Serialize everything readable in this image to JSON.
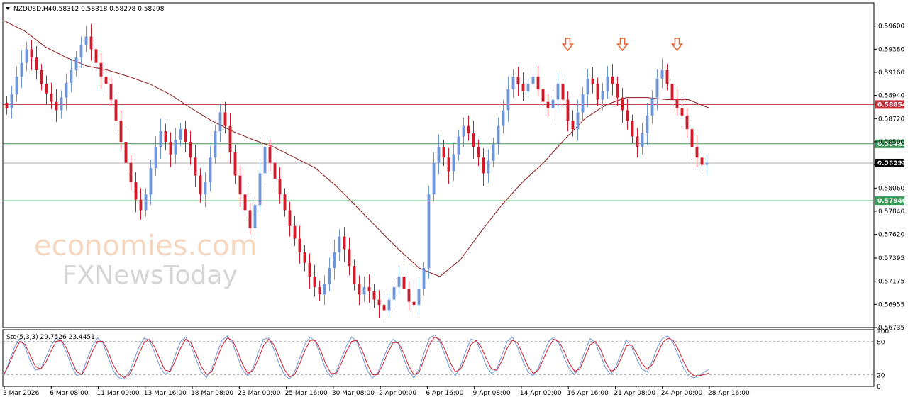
{
  "window": {
    "symbol_tf": "NZDUSD,H4",
    "ohlc": "0.58312 0.58318 0.58278 0.58298"
  },
  "watermark": {
    "line1": "economies.com",
    "line2": "FXNewsToday"
  },
  "colors": {
    "bull": "#6f96d8",
    "bear": "#d11a2a",
    "ma": "#8b1a1a",
    "redline": "#c0303a",
    "greenline": "#3a9a5a",
    "arrow": "#e8622a",
    "sto_main": "#6f96d8",
    "sto_signal": "#d11a2a"
  },
  "chart_data": [
    {
      "type": "candlestick",
      "title": "NZDUSD,H4",
      "ylim": [
        0.56735,
        0.5982
      ],
      "y_ticks": [
        "0.59600",
        "0.59380",
        "0.59160",
        "0.58940",
        "0.58720",
        "0.58500",
        "0.58280",
        "0.58060",
        "0.57840",
        "0.57620",
        "0.57395",
        "0.57175",
        "0.56955",
        "0.56735"
      ],
      "x_ticks": [
        "3 Mar 2026",
        "6 Mar 08:00",
        "11 Mar 00:00",
        "13 Mar 16:00",
        "18 Mar 08:00",
        "23 Mar 00:00",
        "25 Mar 16:00",
        "30 Mar 08:00",
        "2 Apr 00:00",
        "6 Apr 16:00",
        "9 Apr 08:00",
        "14 Apr 00:00",
        "16 Apr 16:00",
        "21 Apr 08:00",
        "24 Apr 00:00",
        "28 Apr 16:00"
      ],
      "closes": [
        0.5882,
        0.5895,
        0.5912,
        0.5925,
        0.5938,
        0.593,
        0.5918,
        0.5905,
        0.5896,
        0.5888,
        0.588,
        0.5892,
        0.5906,
        0.5918,
        0.593,
        0.5942,
        0.595,
        0.5938,
        0.5925,
        0.5912,
        0.5905,
        0.589,
        0.587,
        0.585,
        0.583,
        0.5812,
        0.5795,
        0.5785,
        0.58,
        0.5825,
        0.5845,
        0.586,
        0.585,
        0.5838,
        0.5852,
        0.5862,
        0.585,
        0.5835,
        0.5818,
        0.58,
        0.5812,
        0.5835,
        0.586,
        0.5878,
        0.5865,
        0.584,
        0.5818,
        0.58,
        0.5785,
        0.5768,
        0.579,
        0.582,
        0.5845,
        0.583,
        0.5815,
        0.58,
        0.5785,
        0.577,
        0.5758,
        0.5745,
        0.5735,
        0.5722,
        0.5712,
        0.5705,
        0.5715,
        0.573,
        0.5745,
        0.576,
        0.5748,
        0.5732,
        0.5715,
        0.5705,
        0.5712,
        0.5708,
        0.57,
        0.5695,
        0.569,
        0.57,
        0.5712,
        0.5722,
        0.571,
        0.5698,
        0.5695,
        0.571,
        0.573,
        0.58,
        0.583,
        0.5845,
        0.5835,
        0.5822,
        0.5838,
        0.5855,
        0.5865,
        0.5858,
        0.5845,
        0.5835,
        0.582,
        0.5832,
        0.5848,
        0.5865,
        0.588,
        0.59,
        0.5912,
        0.5905,
        0.5898,
        0.5905,
        0.5912,
        0.59,
        0.5888,
        0.5882,
        0.589,
        0.5905,
        0.589,
        0.587,
        0.5862,
        0.5878,
        0.5895,
        0.591,
        0.5905,
        0.589,
        0.5898,
        0.5912,
        0.5905,
        0.5892,
        0.588,
        0.587,
        0.5855,
        0.5845,
        0.5858,
        0.5875,
        0.5892,
        0.591,
        0.5918,
        0.5905,
        0.589,
        0.5882,
        0.5875,
        0.5862,
        0.5845,
        0.5835,
        0.5828,
        0.58298
      ],
      "sma": [
        0.5965,
        0.5955,
        0.594,
        0.593,
        0.5922,
        0.5918,
        0.5912,
        0.5905,
        0.5895,
        0.5882,
        0.587,
        0.586,
        0.5852,
        0.5845,
        0.5835,
        0.5825,
        0.5808,
        0.5788,
        0.5768,
        0.5748,
        0.573,
        0.5722,
        0.5738,
        0.5765,
        0.579,
        0.5812,
        0.583,
        0.5852,
        0.5872,
        0.5885,
        0.5892,
        0.5892,
        0.589,
        0.589,
        0.5882
      ],
      "horizontal_lines": [
        {
          "value": "0.58854",
          "color": "#c0303a"
        },
        {
          "value": "0.58481",
          "color": "#3a9a5a"
        },
        {
          "value": "0.58298",
          "color": "#b0b0b0"
        },
        {
          "value": "0.57940",
          "color": "#3a9a5a"
        }
      ],
      "arrows_at_candle": [
        113,
        124,
        135
      ]
    },
    {
      "type": "line",
      "title": "Sto(5,3,3) 29.7526 23.4451",
      "ylim": [
        0,
        100
      ],
      "y_ticks": [
        "100",
        "80",
        "20",
        "0"
      ],
      "levels": [
        80,
        20
      ],
      "series": [
        {
          "values": [
            20,
            45,
            70,
            85,
            70,
            45,
            28,
            30,
            50,
            72,
            86,
            80,
            60,
            35,
            18,
            22,
            48,
            72,
            86,
            78,
            52,
            28,
            15,
            12,
            22,
            45,
            70,
            86,
            82,
            60,
            35,
            20,
            28,
            55,
            80,
            88,
            72,
            48,
            25,
            15,
            30,
            58,
            82,
            90,
            78,
            52,
            28,
            18,
            32,
            60,
            84,
            86,
            66,
            40,
            20,
            12,
            25,
            50,
            75,
            88,
            80,
            55,
            30,
            15,
            25,
            48,
            72,
            88,
            80,
            55,
            28,
            14,
            22,
            46,
            70,
            84,
            76,
            50,
            26,
            14,
            30,
            60,
            86,
            92,
            80,
            55,
            30,
            18,
            35,
            62,
            84,
            82,
            60,
            35,
            22,
            30,
            55,
            80,
            88,
            70,
            45,
            25,
            18,
            32,
            58,
            80,
            88,
            76,
            50,
            30,
            20,
            35,
            62,
            85,
            78,
            55,
            32,
            20,
            35,
            60,
            82,
            70,
            48,
            30,
            25,
            45,
            70,
            86,
            90,
            78,
            55,
            32,
            18,
            14,
            18,
            25,
            30
          ]
        },
        {
          "values": [
            22,
            40,
            62,
            80,
            75,
            55,
            35,
            30,
            42,
            62,
            80,
            82,
            68,
            45,
            25,
            20,
            38,
            62,
            80,
            80,
            62,
            38,
            22,
            15,
            18,
            35,
            58,
            78,
            84,
            70,
            48,
            28,
            26,
            45,
            68,
            84,
            78,
            58,
            35,
            20,
            25,
            48,
            72,
            86,
            82,
            62,
            38,
            22,
            28,
            48,
            72,
            84,
            74,
            52,
            30,
            16,
            20,
            40,
            64,
            82,
            82,
            64,
            40,
            22,
            22,
            40,
            62,
            80,
            82,
            65,
            40,
            20,
            20,
            38,
            60,
            78,
            78,
            60,
            36,
            20,
            24,
            48,
            74,
            88,
            84,
            65,
            42,
            25,
            30,
            50,
            74,
            82,
            70,
            48,
            30,
            28,
            45,
            68,
            82,
            78,
            56,
            35,
            22,
            28,
            48,
            70,
            84,
            80,
            62,
            40,
            26,
            30,
            52,
            74,
            80,
            66,
            42,
            26,
            30,
            50,
            72,
            74,
            58,
            40,
            30,
            38,
            58,
            78,
            86,
            82,
            66,
            44,
            26,
            18,
            18,
            20,
            23
          ]
        }
      ]
    }
  ]
}
